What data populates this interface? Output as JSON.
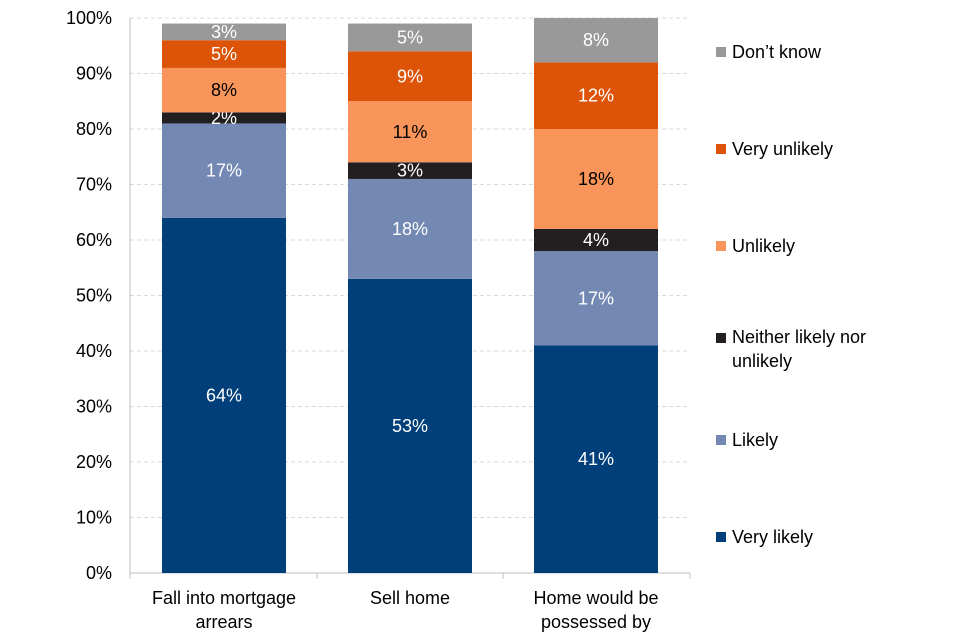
{
  "chart_data": {
    "type": "bar",
    "stacked": true,
    "categories": [
      [
        "Fall into mortgage",
        "arrears"
      ],
      [
        "Sell home"
      ],
      [
        "Home would be",
        "possessed by"
      ]
    ],
    "series": [
      {
        "name": "Very likely",
        "color": "#003f7a",
        "label_color": "#ffffff",
        "values": [
          64,
          53,
          41
        ]
      },
      {
        "name": "Likely",
        "color": "#7389b4",
        "label_color": "#ffffff",
        "values": [
          17,
          18,
          17
        ]
      },
      {
        "name": "Neither likely nor unlikely",
        "color": "#231f20",
        "label_color": "#ffffff",
        "values": [
          2,
          3,
          4
        ]
      },
      {
        "name": "Unlikely",
        "color": "#f9955b",
        "label_color": "#000000",
        "values": [
          8,
          11,
          18
        ]
      },
      {
        "name": "Very unlikely",
        "color": "#dd5409",
        "label_color": "#ffffff",
        "values": [
          5,
          9,
          12
        ]
      },
      {
        "name": "Don’t know",
        "color": "#999999",
        "label_color": "#ffffff",
        "values": [
          3,
          5,
          8
        ]
      }
    ],
    "data_label_suffix": "%",
    "ylim": [
      0,
      100
    ],
    "yticks": [
      "0%",
      "10%",
      "20%",
      "30%",
      "40%",
      "50%",
      "60%",
      "70%",
      "80%",
      "90%",
      "100%"
    ],
    "grid": true,
    "legend_position": "right"
  }
}
